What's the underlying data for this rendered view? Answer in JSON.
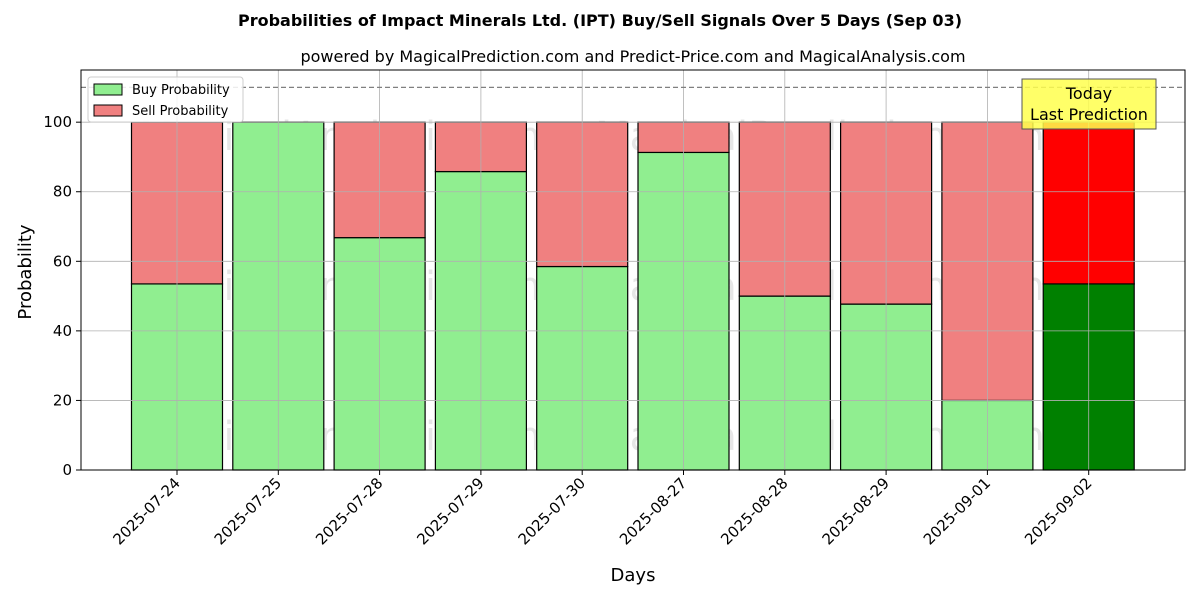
{
  "chart_data": {
    "type": "bar",
    "stacked": true,
    "title": "Probabilities of Impact Minerals Ltd. (IPT) Buy/Sell Signals Over 5 Days (Sep 03)",
    "subtitle": "powered by MagicalPrediction.com and Predict-Price.com and MagicalAnalysis.com",
    "xlabel": "Days",
    "ylabel": "Probability",
    "ylim": [
      0,
      115
    ],
    "yticks": [
      0,
      20,
      40,
      60,
      80,
      100
    ],
    "grid": true,
    "reference_line": 110,
    "categories": [
      "2025-07-24",
      "2025-07-25",
      "2025-07-28",
      "2025-07-29",
      "2025-07-30",
      "2025-08-27",
      "2025-08-28",
      "2025-08-29",
      "2025-09-01",
      "2025-09-02"
    ],
    "series": [
      {
        "name": "Buy Probability",
        "values": [
          53.5,
          100,
          66.8,
          85.8,
          58.5,
          91.3,
          50.0,
          47.7,
          20.0,
          53.5
        ],
        "color": "#90ee90",
        "highlight_color": "#008000"
      },
      {
        "name": "Sell Probability",
        "values": [
          46.5,
          0,
          33.2,
          14.2,
          41.5,
          8.7,
          50.0,
          52.3,
          80.0,
          46.5
        ],
        "color": "#f08080",
        "highlight_color": "#ff0000"
      }
    ],
    "highlight_index": 9,
    "legend_position": "top-left",
    "annotation": {
      "line1": "Today",
      "line2": "Last Prediction",
      "color": "#ffff4d"
    },
    "watermarks": [
      "MagicalAnalysis.com",
      "MagicalPrediction.com"
    ]
  }
}
